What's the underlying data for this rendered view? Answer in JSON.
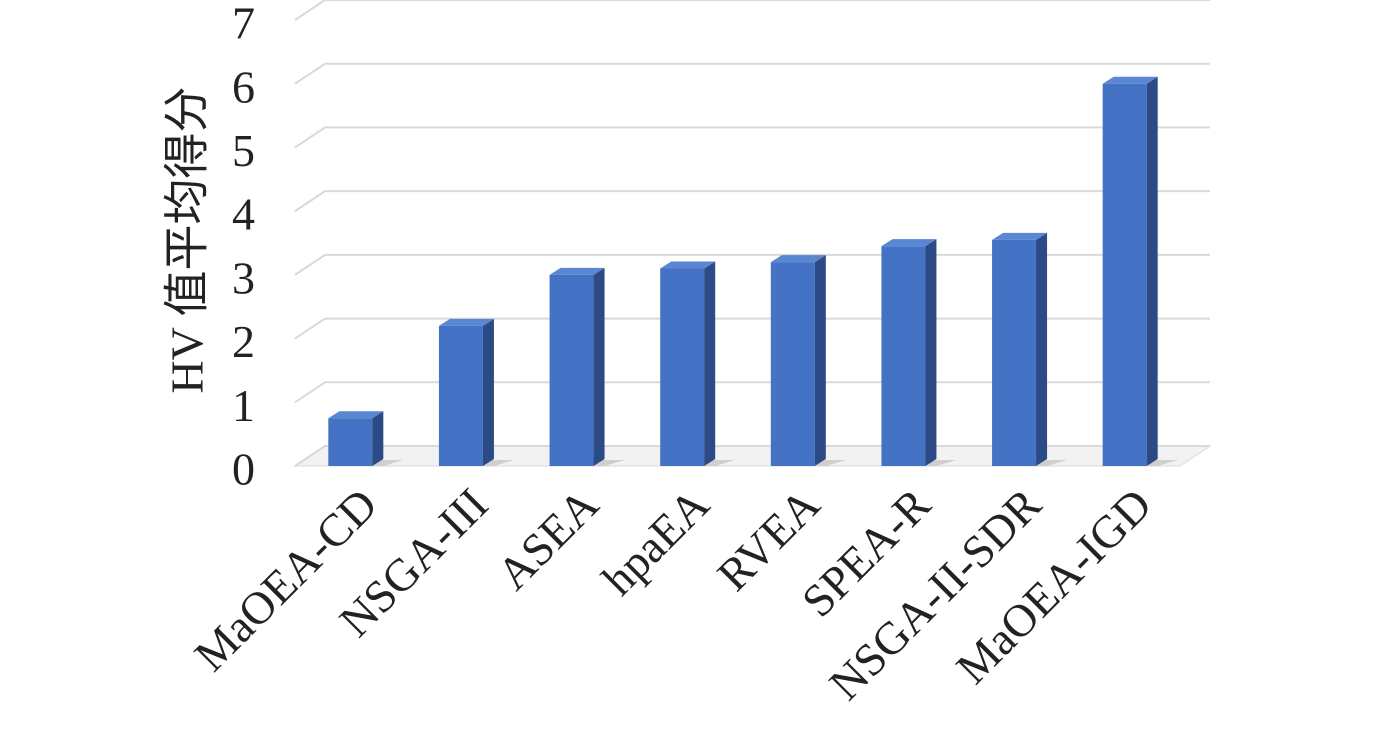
{
  "chart_data": {
    "type": "bar3d",
    "y_label": "HV 值平均得分",
    "categories": [
      "MaOEA-CD",
      "NSGA-III",
      "ASEA",
      "hpaEA",
      "RVEA",
      "SPEA-R",
      "NSGA-II-SDR",
      "MaOEA-IGD"
    ],
    "values": [
      0.75,
      2.2,
      3.0,
      3.1,
      3.2,
      3.45,
      3.55,
      6.0
    ],
    "color": "#4472c4",
    "ylim": [
      0,
      7
    ],
    "yticks": [
      0,
      1,
      2,
      3,
      4,
      5,
      6,
      7
    ],
    "grid": true
  }
}
